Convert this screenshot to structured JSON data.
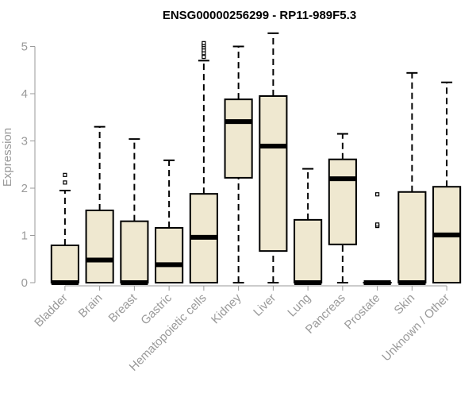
{
  "chart_data": {
    "type": "box",
    "title": "ENSG00000256299 - RP11-989F5.3",
    "ylabel": "Expression",
    "xlabel": "",
    "ylim": [
      0,
      5.3
    ],
    "yticks": [
      0,
      1,
      2,
      3,
      4,
      5
    ],
    "box_fill": "#efe8d0",
    "box_stroke": "#000000",
    "axis_color": "#9a9a9a",
    "categories": [
      "Bladder",
      "Brain",
      "Breast",
      "Gastric",
      "Hematopoietic cells",
      "Kidney",
      "Liver",
      "Lung",
      "Pancreas",
      "Prostate",
      "Skin",
      "Unknown / Other"
    ],
    "boxes": [
      {
        "category": "Bladder",
        "min": 0,
        "q1": 0,
        "median": 0,
        "q3": 0.79,
        "max": 1.95,
        "outliers": [
          2.12,
          2.28
        ]
      },
      {
        "category": "Brain",
        "min": 0,
        "q1": 0,
        "median": 0.48,
        "q3": 1.53,
        "max": 3.3,
        "outliers": []
      },
      {
        "category": "Breast",
        "min": 0,
        "q1": 0,
        "median": 0,
        "q3": 1.3,
        "max": 3.04,
        "outliers": []
      },
      {
        "category": "Gastric",
        "min": 0,
        "q1": 0,
        "median": 0.38,
        "q3": 1.16,
        "max": 2.59,
        "outliers": []
      },
      {
        "category": "Hematopoietic cells",
        "min": 0,
        "q1": 0,
        "median": 0.96,
        "q3": 1.88,
        "max": 4.7,
        "outliers": [
          4.78,
          4.86,
          4.92,
          4.98,
          5.03,
          5.07
        ]
      },
      {
        "category": "Kidney",
        "min": 0,
        "q1": 2.22,
        "median": 3.41,
        "q3": 3.88,
        "max": 5.0,
        "outliers": []
      },
      {
        "category": "Liver",
        "min": 0,
        "q1": 0.67,
        "median": 2.89,
        "q3": 3.95,
        "max": 5.28,
        "outliers": []
      },
      {
        "category": "Lung",
        "min": 0,
        "q1": 0,
        "median": 0,
        "q3": 1.33,
        "max": 2.41,
        "outliers": []
      },
      {
        "category": "Pancreas",
        "min": 0,
        "q1": 0.81,
        "median": 2.2,
        "q3": 2.61,
        "max": 3.15,
        "outliers": []
      },
      {
        "category": "Prostate",
        "min": 0,
        "q1": 0,
        "median": 0,
        "q3": 0,
        "max": 0,
        "outliers": [
          1.2,
          1.23,
          1.87
        ]
      },
      {
        "category": "Skin",
        "min": 0,
        "q1": 0,
        "median": 0,
        "q3": 1.92,
        "max": 4.44,
        "outliers": []
      },
      {
        "category": "Unknown / Other",
        "min": 0,
        "q1": 0,
        "median": 1.01,
        "q3": 2.03,
        "max": 4.24,
        "outliers": []
      }
    ]
  }
}
